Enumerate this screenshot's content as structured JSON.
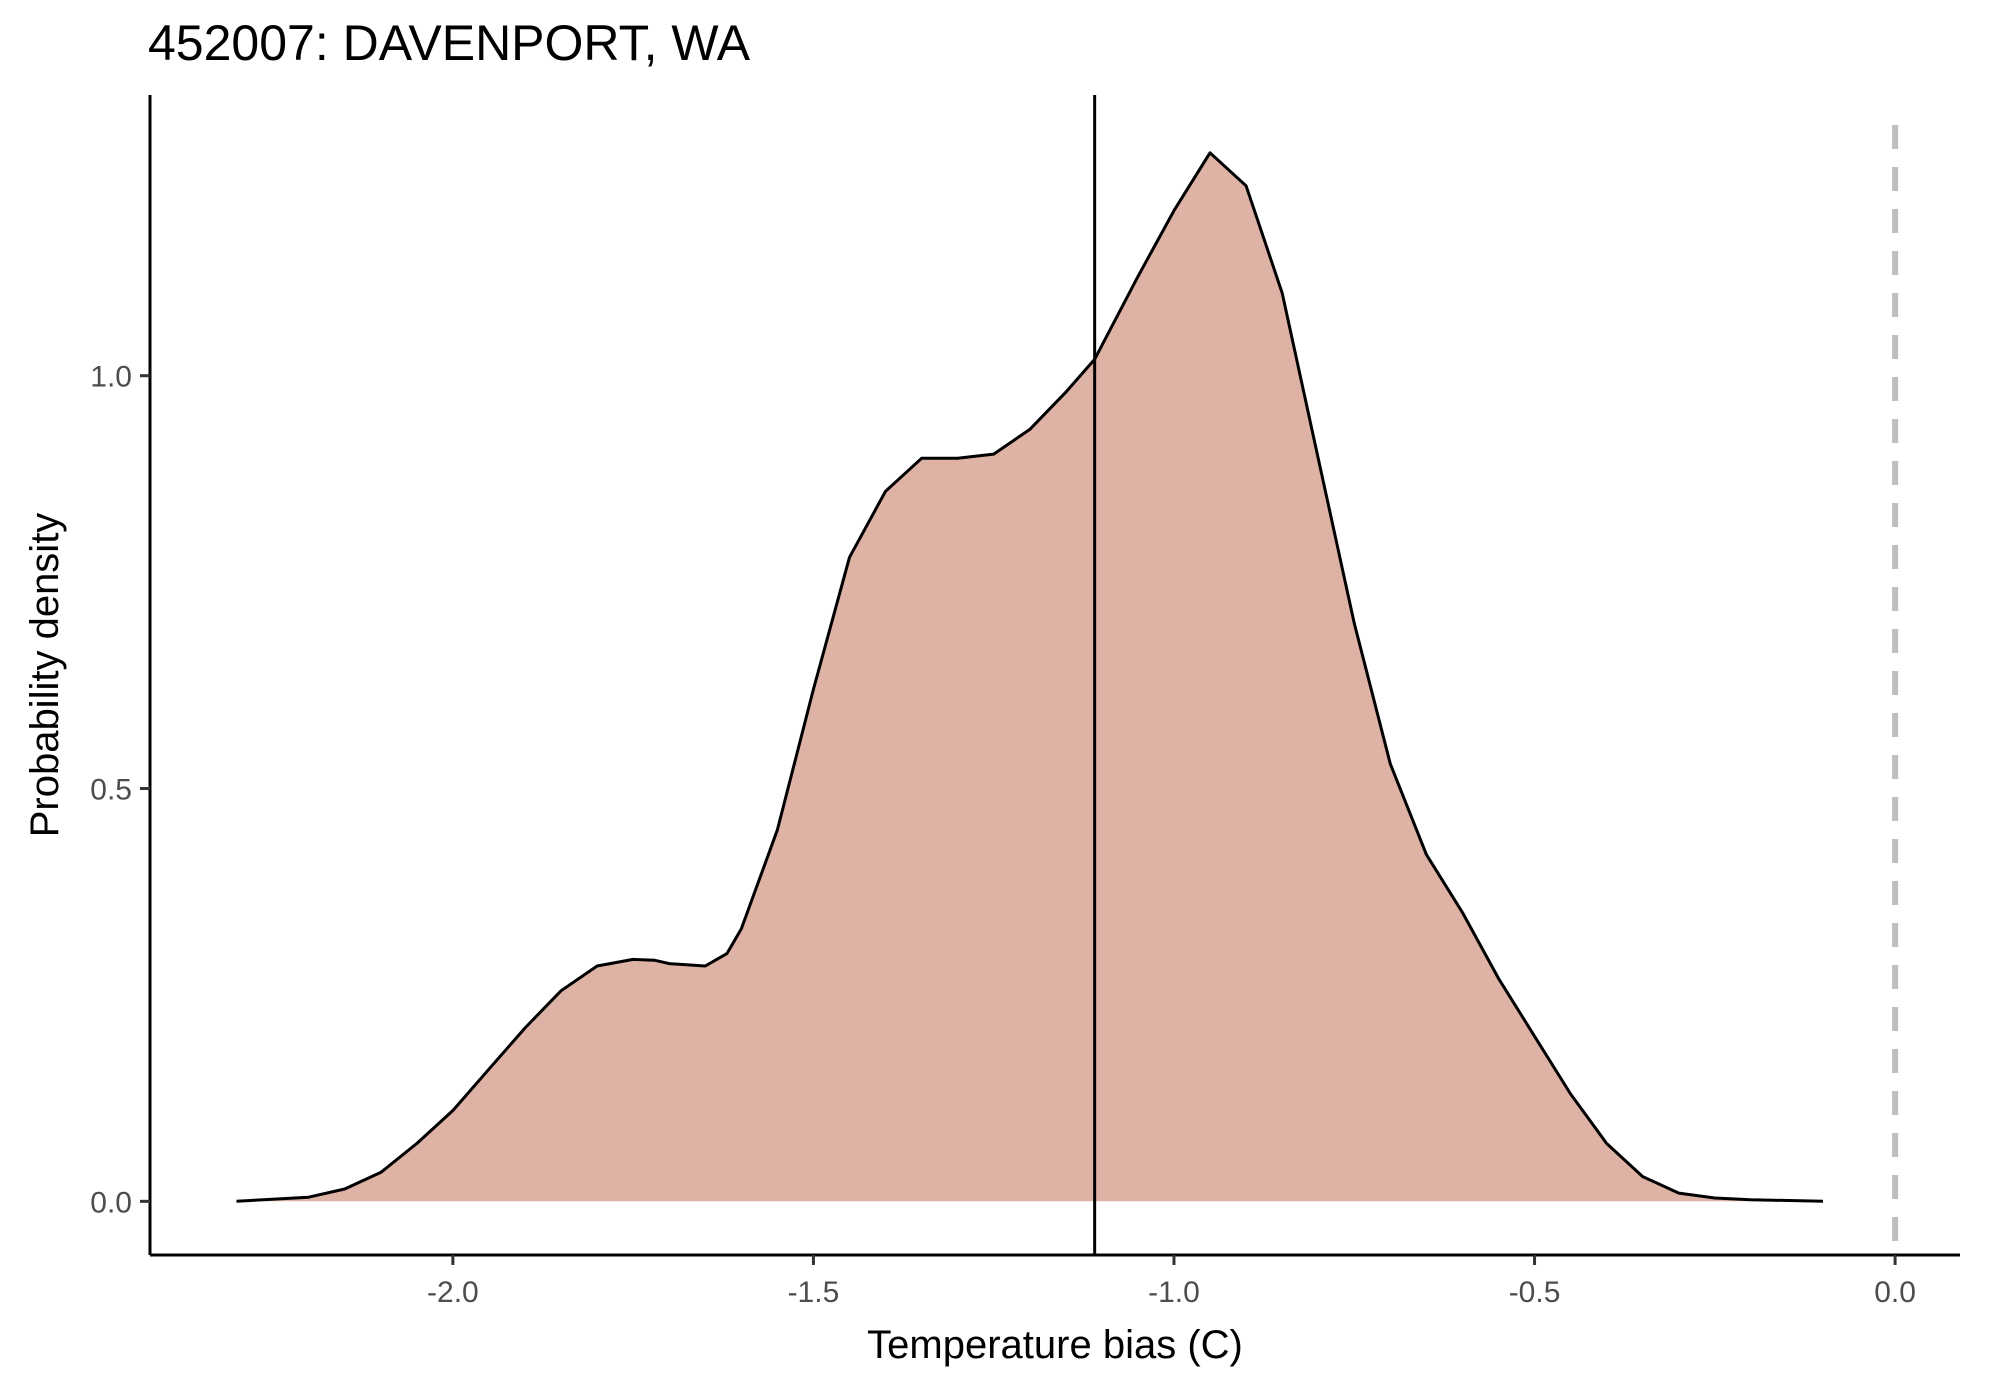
{
  "chart_data": {
    "type": "area",
    "title": "452007: DAVENPORT, WA",
    "xlabel": "Temperature bias (C)",
    "ylabel": "Probability density",
    "xlim": [
      -2.42,
      0.09
    ],
    "ylim": [
      -0.065,
      1.34
    ],
    "x_ticks": [
      -2.0,
      -1.5,
      -1.0,
      -0.5,
      0.0
    ],
    "x_tick_labels": [
      "-2.0",
      "-1.5",
      "-1.0",
      "-0.5",
      "0.0"
    ],
    "y_ticks": [
      0.0,
      0.5,
      1.0
    ],
    "y_tick_labels": [
      "0.0",
      "0.5",
      "1.0"
    ],
    "grid": false,
    "fill_color": "#deb2a4",
    "line_color": "#000000",
    "series": [
      {
        "x": [
          -2.3,
          -2.2,
          -2.15,
          -2.1,
          -2.05,
          -2.0,
          -1.95,
          -1.9,
          -1.85,
          -1.8,
          -1.75,
          -1.72,
          -1.7,
          -1.65,
          -1.62,
          -1.6,
          -1.55,
          -1.5,
          -1.45,
          -1.4,
          -1.35,
          -1.3,
          -1.25,
          -1.2,
          -1.15,
          -1.11,
          -1.05,
          -1.0,
          -0.95,
          -0.9,
          -0.85,
          -0.8,
          -0.75,
          -0.7,
          -0.65,
          -0.6,
          -0.55,
          -0.5,
          -0.45,
          -0.4,
          -0.35,
          -0.3,
          -0.25,
          -0.2,
          -0.1
        ],
        "y": [
          0.0,
          0.005,
          0.015,
          0.035,
          0.07,
          0.11,
          0.16,
          0.21,
          0.255,
          0.285,
          0.293,
          0.292,
          0.288,
          0.285,
          0.3,
          0.33,
          0.45,
          0.62,
          0.78,
          0.86,
          0.9,
          0.9,
          0.905,
          0.935,
          0.98,
          1.02,
          1.12,
          1.2,
          1.27,
          1.23,
          1.1,
          0.9,
          0.7,
          0.53,
          0.42,
          0.35,
          0.27,
          0.2,
          0.13,
          0.07,
          0.03,
          0.01,
          0.004,
          0.002,
          0.0
        ]
      }
    ],
    "vlines": [
      {
        "x": -1.11,
        "style": "solid",
        "color": "#000000"
      },
      {
        "x": 0.0,
        "style": "dashed",
        "color": "#bebebe"
      }
    ]
  }
}
